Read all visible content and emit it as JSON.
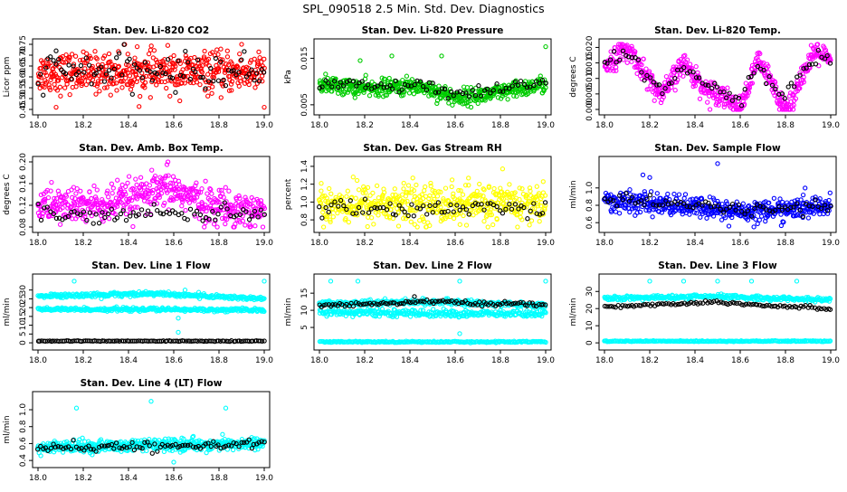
{
  "figure_title": "SPL_090518  2.5 Min. Std. Dev. Diagnostics",
  "colors": {
    "red": "#ff0000",
    "green": "#00cc00",
    "magenta": "#ff00ff",
    "yellow": "#ffff00",
    "blue": "#0000ff",
    "cyan": "#00ffff",
    "black": "#000000"
  },
  "chart_data": [
    {
      "type": "scatter",
      "title": "Stan. Dev. Li-820 CO2",
      "xlabel": "",
      "ylabel": "Licor ppm",
      "xlim": [
        18.0,
        19.0
      ],
      "ylim": [
        0.45,
        0.75
      ],
      "xticks": [
        "18.0",
        "18.2",
        "18.4",
        "18.6",
        "18.8",
        "19.0"
      ],
      "yticks": [
        "0.45",
        "0.50",
        "0.55",
        "0.60",
        "0.65",
        "0.70",
        "0.75"
      ],
      "series": [
        {
          "color": "red",
          "n": 520,
          "center": [
            [
              18.0,
              0.62
            ],
            [
              19.0,
              0.62
            ]
          ],
          "spread": 0.045,
          "outliers": [
            [
              18.08,
              0.46
            ],
            [
              18.9,
              0.75
            ],
            [
              19.0,
              0.46
            ]
          ]
        },
        {
          "color": "black",
          "n": 90,
          "center": [
            [
              18.0,
              0.63
            ],
            [
              19.0,
              0.62
            ]
          ],
          "spread": 0.04,
          "outliers": [
            [
              18.08,
              0.72
            ]
          ]
        }
      ]
    },
    {
      "type": "scatter",
      "title": "Stan. Dev. Li-820 Pressure",
      "xlabel": "",
      "ylabel": "kPa",
      "xlim": [
        18.0,
        19.0
      ],
      "ylim": [
        0.004,
        0.018
      ],
      "xticks": [
        "18.0",
        "18.2",
        "18.4",
        "18.6",
        "18.8",
        "19.0"
      ],
      "yticks": [
        "0.005",
        "",
        "0.015"
      ],
      "series": [
        {
          "color": "green",
          "n": 520,
          "center": [
            [
              18.0,
              0.0095
            ],
            [
              18.2,
              0.0085
            ],
            [
              18.45,
              0.009
            ],
            [
              18.6,
              0.0065
            ],
            [
              18.8,
              0.0075
            ],
            [
              19.0,
              0.0095
            ]
          ],
          "spread": 0.0009,
          "outliers": [
            [
              18.32,
              0.0155
            ],
            [
              18.54,
              0.0155
            ],
            [
              18.18,
              0.0145
            ],
            [
              19.0,
              0.0175
            ]
          ]
        },
        {
          "color": "black",
          "n": 75,
          "center": [
            [
              18.0,
              0.0095
            ],
            [
              18.2,
              0.009
            ],
            [
              18.45,
              0.009
            ],
            [
              18.6,
              0.007
            ],
            [
              18.8,
              0.008
            ],
            [
              19.0,
              0.0105
            ]
          ],
          "spread": 0.0007,
          "outliers": []
        }
      ]
    },
    {
      "type": "scatter",
      "title": "Stan. Dev. Li-820 Temp.",
      "xlabel": "",
      "ylabel": "degrees C",
      "xlim": [
        18.0,
        19.0
      ],
      "ylim": [
        0.0,
        0.021
      ],
      "xticks": [
        "18.0",
        "18.2",
        "18.4",
        "18.6",
        "18.8",
        "19.0"
      ],
      "yticks": [
        "0.000",
        "0.005",
        "0.010",
        "0.015",
        "0.020"
      ],
      "series": [
        {
          "color": "magenta",
          "n": 520,
          "center": [
            [
              18.0,
              0.014
            ],
            [
              18.08,
              0.019
            ],
            [
              18.12,
              0.018
            ],
            [
              18.25,
              0.004
            ],
            [
              18.35,
              0.015
            ],
            [
              18.45,
              0.006
            ],
            [
              18.52,
              0.005
            ],
            [
              18.6,
              0.0
            ],
            [
              18.68,
              0.016
            ],
            [
              18.78,
              0.003
            ],
            [
              18.82,
              0.0
            ],
            [
              18.85,
              0.008
            ],
            [
              18.94,
              0.019
            ],
            [
              19.0,
              0.015
            ]
          ],
          "spread": 0.0018,
          "outliers": []
        },
        {
          "color": "black",
          "n": 75,
          "center": [
            [
              18.0,
              0.014
            ],
            [
              18.08,
              0.018
            ],
            [
              18.12,
              0.017
            ],
            [
              18.25,
              0.005
            ],
            [
              18.35,
              0.014
            ],
            [
              18.45,
              0.007
            ],
            [
              18.52,
              0.006
            ],
            [
              18.6,
              0.002
            ],
            [
              18.68,
              0.015
            ],
            [
              18.78,
              0.004
            ],
            [
              18.85,
              0.009
            ],
            [
              18.94,
              0.018
            ],
            [
              19.0,
              0.015
            ]
          ],
          "spread": 0.0012,
          "outliers": []
        }
      ]
    },
    {
      "type": "scatter",
      "title": "Stan. Dev. Amb. Box Temp.",
      "xlabel": "",
      "ylabel": "degrees C",
      "xlim": [
        18.0,
        19.0
      ],
      "ylim": [
        0.08,
        0.2
      ],
      "xticks": [
        "18.0",
        "18.2",
        "18.4",
        "18.6",
        "18.8",
        "19.0"
      ],
      "yticks": [
        "0.08",
        "0.12",
        "0.16",
        "0.20"
      ],
      "series": [
        {
          "color": "magenta",
          "n": 520,
          "center": [
            [
              18.0,
              0.12
            ],
            [
              18.3,
              0.12
            ],
            [
              18.5,
              0.14
            ],
            [
              18.6,
              0.15
            ],
            [
              18.75,
              0.12
            ],
            [
              19.0,
              0.11
            ]
          ],
          "spread": 0.017,
          "outliers": [
            [
              18.57,
              0.195
            ]
          ]
        },
        {
          "color": "black",
          "n": 75,
          "center": [
            [
              18.0,
              0.105
            ],
            [
              18.5,
              0.105
            ],
            [
              19.0,
              0.105
            ]
          ],
          "spread": 0.007,
          "outliers": []
        }
      ]
    },
    {
      "type": "scatter",
      "title": "Stan. Dev. Gas Stream RH",
      "xlabel": "",
      "ylabel": "percent",
      "xlim": [
        18.0,
        19.0
      ],
      "ylim": [
        0.72,
        1.45
      ],
      "xticks": [
        "18.0",
        "18.2",
        "18.4",
        "18.6",
        "18.8",
        "19.0"
      ],
      "yticks": [
        "0.8",
        "1.0",
        "1.2",
        "1.4"
      ],
      "series": [
        {
          "color": "yellow",
          "n": 520,
          "center": [
            [
              18.0,
              0.98
            ],
            [
              19.0,
              0.98
            ]
          ],
          "spread": 0.11,
          "outliers": [
            [
              18.35,
              0.73
            ],
            [
              18.65,
              0.74
            ]
          ]
        },
        {
          "color": "black",
          "n": 75,
          "center": [
            [
              18.0,
              0.93
            ],
            [
              19.0,
              0.93
            ]
          ],
          "spread": 0.05,
          "outliers": []
        }
      ]
    },
    {
      "type": "scatter",
      "title": "Stan. Dev. Sample Flow",
      "xlabel": "",
      "ylabel": "ml/min",
      "xlim": [
        18.0,
        19.0
      ],
      "ylim": [
        0.55,
        1.3
      ],
      "xticks": [
        "18.0",
        "18.2",
        "18.4",
        "18.6",
        "18.8",
        "19.0"
      ],
      "yticks": [
        "0.6",
        "0.8",
        "1.0"
      ],
      "series": [
        {
          "color": "blue",
          "n": 520,
          "center": [
            [
              18.0,
              0.85
            ],
            [
              18.3,
              0.8
            ],
            [
              18.6,
              0.73
            ],
            [
              18.8,
              0.75
            ],
            [
              19.0,
              0.8
            ]
          ],
          "spread": 0.06,
          "outliers": [
            [
              18.5,
              1.28
            ],
            [
              18.17,
              1.15
            ],
            [
              18.2,
              1.12
            ],
            [
              18.55,
              0.56
            ]
          ]
        },
        {
          "color": "black",
          "n": 75,
          "center": [
            [
              18.0,
              0.86
            ],
            [
              18.3,
              0.82
            ],
            [
              18.6,
              0.75
            ],
            [
              18.8,
              0.77
            ],
            [
              19.0,
              0.8
            ]
          ],
          "spread": 0.035,
          "outliers": []
        }
      ]
    },
    {
      "type": "scatter",
      "title": "Stan. Dev. Line 1 Flow",
      "xlabel": "",
      "ylabel": "ml/min",
      "xlim": [
        18.0,
        19.0
      ],
      "ylim": [
        -1,
        36
      ],
      "xticks": [
        "18.0",
        "18.2",
        "18.4",
        "18.6",
        "18.8",
        "19.0"
      ],
      "yticks": [
        "0",
        "5",
        "10",
        "15",
        "20",
        "25",
        "30"
      ],
      "series": [
        {
          "color": "cyan",
          "n": 330,
          "center": [
            [
              18.0,
              26.5
            ],
            [
              18.5,
              28
            ],
            [
              19.0,
              25
            ]
          ],
          "spread": 0.6,
          "outliers": [
            [
              18.16,
              35
            ],
            [
              18.28,
              25
            ],
            [
              18.65,
              30
            ],
            [
              19.0,
              35
            ]
          ]
        },
        {
          "color": "cyan",
          "n": 330,
          "center": [
            [
              18.0,
              19
            ],
            [
              18.5,
              19
            ],
            [
              19.0,
              18.5
            ]
          ],
          "spread": 0.5,
          "outliers": [
            [
              18.62,
              6
            ],
            [
              18.62,
              14
            ]
          ]
        },
        {
          "color": "black",
          "n": 120,
          "center": [
            [
              18.0,
              1
            ],
            [
              19.0,
              1
            ]
          ],
          "spread": 0.1,
          "outliers": []
        }
      ]
    },
    {
      "type": "scatter",
      "title": "Stan. Dev. Line 2 Flow",
      "xlabel": "",
      "ylabel": "ml/min",
      "xlim": [
        18.0,
        19.0
      ],
      "ylim": [
        0,
        19
      ],
      "xticks": [
        "18.0",
        "18.2",
        "18.4",
        "18.6",
        "18.8",
        "19.0"
      ],
      "yticks": [
        "5",
        "10",
        "15"
      ],
      "series": [
        {
          "color": "cyan",
          "n": 330,
          "center": [
            [
              18.0,
              12
            ],
            [
              18.5,
              12.5
            ],
            [
              19.0,
              11.5
            ]
          ],
          "spread": 0.4,
          "outliers": [
            [
              18.05,
              18.5
            ],
            [
              18.17,
              18.5
            ],
            [
              18.62,
              18.5
            ],
            [
              19.0,
              18.5
            ]
          ]
        },
        {
          "color": "cyan",
          "n": 330,
          "center": [
            [
              18.0,
              9.5
            ],
            [
              18.6,
              9
            ],
            [
              19.0,
              9
            ]
          ],
          "spread": 0.5,
          "outliers": [
            [
              18.62,
              3.2
            ]
          ]
        },
        {
          "color": "cyan",
          "n": 220,
          "center": [
            [
              18.0,
              0.8
            ],
            [
              19.0,
              0.8
            ]
          ],
          "spread": 0.1,
          "outliers": []
        },
        {
          "color": "black",
          "n": 100,
          "center": [
            [
              18.0,
              11.5
            ],
            [
              18.5,
              12.5
            ],
            [
              19.0,
              11.5
            ]
          ],
          "spread": 0.3,
          "outliers": [
            [
              18.42,
              14
            ]
          ]
        }
      ]
    },
    {
      "type": "scatter",
      "title": "Stan. Dev. Line 3 Flow",
      "xlabel": "",
      "ylabel": "ml/min",
      "xlim": [
        18.0,
        19.0
      ],
      "ylim": [
        -1,
        37
      ],
      "xticks": [
        "18.0",
        "18.2",
        "18.4",
        "18.6",
        "18.8",
        "19.0"
      ],
      "yticks": [
        "0",
        "10",
        "20",
        "30"
      ],
      "series": [
        {
          "color": "cyan",
          "n": 330,
          "center": [
            [
              18.0,
              26
            ],
            [
              18.5,
              27
            ],
            [
              19.0,
              25
            ]
          ],
          "spread": 0.6,
          "outliers": [
            [
              18.2,
              36
            ],
            [
              18.35,
              36
            ],
            [
              18.5,
              36
            ],
            [
              18.65,
              36
            ],
            [
              18.85,
              36
            ]
          ]
        },
        {
          "color": "cyan",
          "n": 220,
          "center": [
            [
              18.0,
              1
            ],
            [
              19.0,
              1
            ]
          ],
          "spread": 0.15,
          "outliers": []
        },
        {
          "color": "black",
          "n": 100,
          "center": [
            [
              18.0,
              21
            ],
            [
              18.5,
              24
            ],
            [
              18.7,
              22
            ],
            [
              19.0,
              20
            ]
          ],
          "spread": 0.5,
          "outliers": []
        }
      ]
    },
    {
      "type": "scatter",
      "title": "Stan. Dev. Line 4 (LT) Flow",
      "xlabel": "",
      "ylabel": "ml/min",
      "xlim": [
        18.0,
        19.0
      ],
      "ylim": [
        0.38,
        1.15
      ],
      "xticks": [
        "18.0",
        "18.2",
        "18.4",
        "18.6",
        "18.8",
        "19.0"
      ],
      "yticks": [
        "0.4",
        "0.6",
        "0.8",
        "1.0"
      ],
      "series": [
        {
          "color": "cyan",
          "n": 520,
          "center": [
            [
              18.0,
              0.55
            ],
            [
              18.5,
              0.58
            ],
            [
              19.0,
              0.6
            ]
          ],
          "spread": 0.035,
          "outliers": [
            [
              18.17,
              1.02
            ],
            [
              18.5,
              1.1
            ],
            [
              18.83,
              1.02
            ],
            [
              18.6,
              0.38
            ]
          ]
        },
        {
          "color": "black",
          "n": 90,
          "center": [
            [
              18.0,
              0.54
            ],
            [
              18.5,
              0.57
            ],
            [
              19.0,
              0.6
            ]
          ],
          "spread": 0.025,
          "outliers": []
        }
      ]
    }
  ]
}
